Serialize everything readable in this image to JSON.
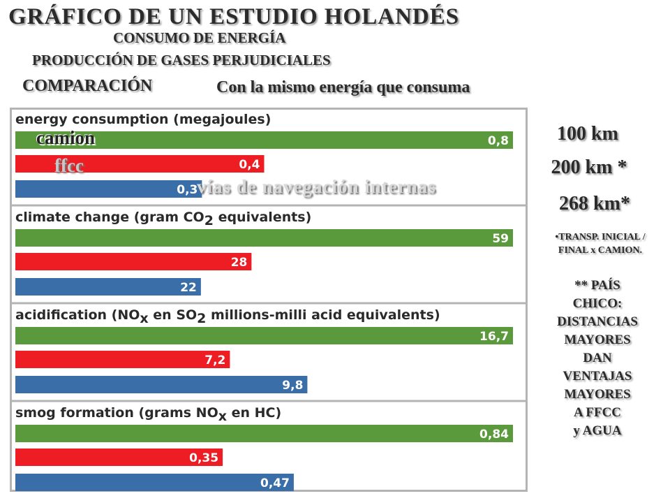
{
  "header": {
    "title": "GRÁFICO DE UN ESTUDIO HOLANDÉS",
    "subtitle_1": "CONSUMO DE ENERGÍA",
    "subtitle_2": "PRODUCCIÓN DE GASES PERJUDICIALES",
    "comparison_label": "COMPARACIÓN",
    "comparison_text": "Con la mismo energía que consuma"
  },
  "overlay_labels": {
    "camion": "camion",
    "ffcc": "ffcc",
    "waterways": "vías de navegación internas"
  },
  "colors": {
    "camion": "#5b9a3c",
    "ffcc": "#ee1c23",
    "waterways": "#3a6ea8",
    "frame": "#b4b4b4"
  },
  "chart_data": {
    "type": "bar",
    "orientation": "horizontal",
    "series_colors": [
      "#5b9a3c",
      "#ee1c23",
      "#3a6ea8"
    ],
    "panels": [
      {
        "title_parts": [
          {
            "t": "energy consumption (megajoules)"
          }
        ],
        "values": [
          0.8,
          0.4,
          0.3
        ],
        "labels": [
          "0,8",
          "0,4",
          "0,3"
        ]
      },
      {
        "title_parts": [
          {
            "t": "climate change (gram CO"
          },
          {
            "t": "2",
            "sub": true
          },
          {
            "t": " equivalents)"
          }
        ],
        "values": [
          59,
          28,
          22
        ],
        "labels": [
          "59",
          "28",
          "22"
        ]
      },
      {
        "title_parts": [
          {
            "t": "acidification (NO"
          },
          {
            "t": "x",
            "sub": true
          },
          {
            "t": " en SO"
          },
          {
            "t": "2",
            "sub": true
          },
          {
            "t": " millions-milli acid equivalents)"
          }
        ],
        "values": [
          16.7,
          7.2,
          9.8
        ],
        "labels": [
          "16,7",
          "7,2",
          "9,8"
        ]
      },
      {
        "title_parts": [
          {
            "t": "smog formation (grams NO"
          },
          {
            "t": "x",
            "sub": true
          },
          {
            "t": " en HC)"
          }
        ],
        "values": [
          0.84,
          0.35,
          0.47
        ],
        "labels": [
          "0,84",
          "0,35",
          "0,47"
        ]
      }
    ]
  },
  "right_panel": {
    "distance_1": "100 km",
    "distance_2": "200 km  *",
    "distance_3": "268 km*",
    "note_1_line_1": "•TRANSP. INICIAL /",
    "note_1_line_2": "FINAL x CAMION.",
    "note_2_lines": [
      "** PAÍS",
      "CHICO:",
      "DISTANCIAS",
      "MAYORES",
      "DAN",
      "VENTAJAS",
      "MAYORES",
      "A  FFCC",
      "y AGUA"
    ]
  }
}
